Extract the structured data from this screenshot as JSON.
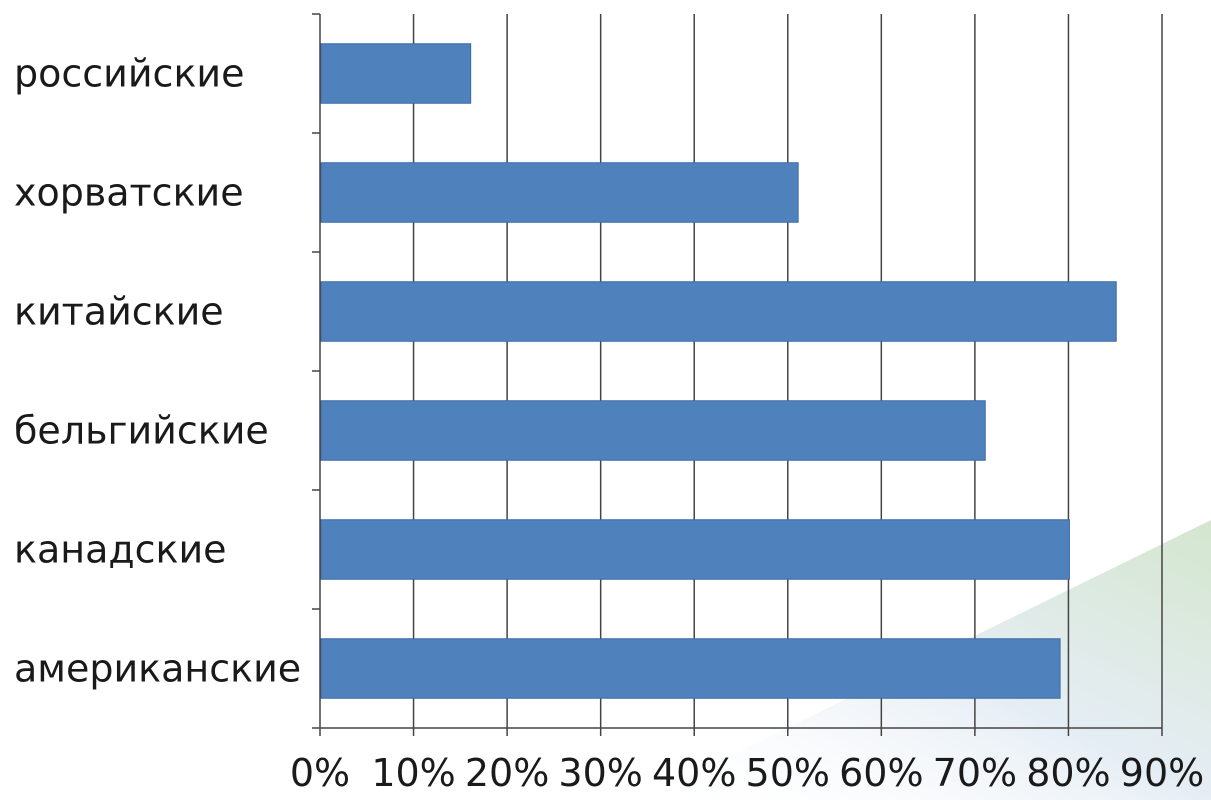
{
  "chart_data": {
    "type": "bar",
    "orientation": "horizontal",
    "categories": [
      "российские",
      "хорватские",
      "китайские",
      "бельгийские",
      "канадские",
      "американские"
    ],
    "values": [
      16,
      51,
      85,
      71,
      80,
      79
    ],
    "x_ticks": [
      "0%",
      "10%",
      "20%",
      "30%",
      "40%",
      "50%",
      "60%",
      "70%",
      "80%",
      "90%"
    ],
    "xlim": [
      0,
      90
    ],
    "grid": true,
    "legend": "none",
    "bar_color": "#4f81bd",
    "bar_edge_color": "#3a6aa5",
    "grid_color": "#444444"
  }
}
